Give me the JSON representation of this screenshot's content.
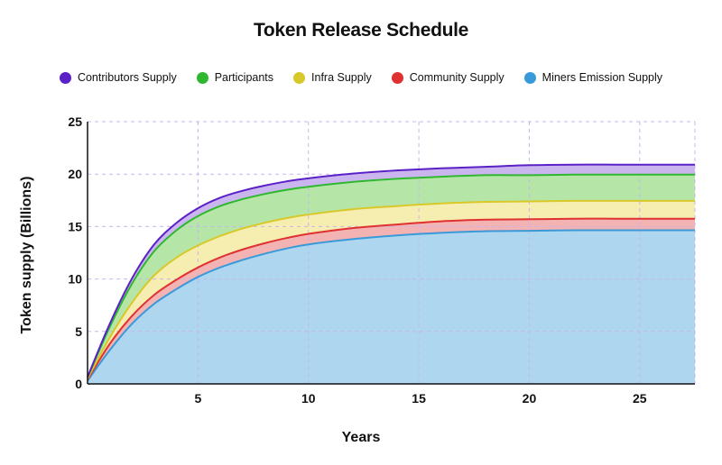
{
  "chart_data": {
    "type": "area",
    "stacked": true,
    "title": "Token Release Schedule",
    "xlabel": "Years",
    "ylabel": "Token supply (Billions)",
    "xlim": [
      0,
      27.5
    ],
    "ylim": [
      0,
      25
    ],
    "xticks": [
      5,
      10,
      15,
      20,
      25
    ],
    "yticks": [
      0,
      5,
      10,
      15,
      20,
      25
    ],
    "grid": true,
    "legend_position": "top",
    "x": [
      0,
      1,
      2,
      3,
      4,
      5,
      6,
      7,
      8,
      9,
      10,
      12,
      14,
      16,
      18,
      20,
      22,
      24,
      26,
      27.5
    ],
    "series": [
      {
        "name": "Miners Emission Supply",
        "color": "#3a9ad9",
        "fill": "#aed6ef",
        "values": [
          0.3,
          3.2,
          5.7,
          7.6,
          9.0,
          10.2,
          11.1,
          11.8,
          12.4,
          12.9,
          13.3,
          13.8,
          14.15,
          14.4,
          14.55,
          14.6,
          14.65,
          14.65,
          14.65,
          14.65
        ]
      },
      {
        "name": "Community Supply",
        "color": "#e03131",
        "fill": "#f3b3b3",
        "values": [
          0.1,
          0.6,
          0.75,
          0.85,
          0.9,
          0.9,
          0.95,
          1.0,
          1.0,
          1.0,
          1.0,
          1.05,
          1.05,
          1.1,
          1.1,
          1.1,
          1.1,
          1.1,
          1.1,
          1.1
        ]
      },
      {
        "name": "Infra Supply",
        "color": "#d8c82a",
        "fill": "#f5eeb0",
        "values": [
          0.1,
          0.6,
          1.25,
          1.85,
          2.1,
          2.1,
          2.05,
          2.0,
          1.95,
          1.9,
          1.85,
          1.8,
          1.75,
          1.7,
          1.7,
          1.7,
          1.7,
          1.7,
          1.7,
          1.7
        ]
      },
      {
        "name": "Participants",
        "color": "#2fb82f",
        "fill": "#b5e6a8",
        "values": [
          0.1,
          1.0,
          1.8,
          2.3,
          2.6,
          2.8,
          2.85,
          2.8,
          2.75,
          2.7,
          2.65,
          2.6,
          2.6,
          2.55,
          2.55,
          2.5,
          2.5,
          2.5,
          2.5,
          2.5
        ]
      },
      {
        "name": "Contributors Supply",
        "color": "#5b21c7",
        "fill": "#cbb5ee",
        "values": [
          0.05,
          0.3,
          0.5,
          0.65,
          0.7,
          0.75,
          0.8,
          0.8,
          0.8,
          0.8,
          0.8,
          0.8,
          0.8,
          0.8,
          0.8,
          0.95,
          0.95,
          0.95,
          0.95,
          0.95
        ]
      }
    ]
  }
}
